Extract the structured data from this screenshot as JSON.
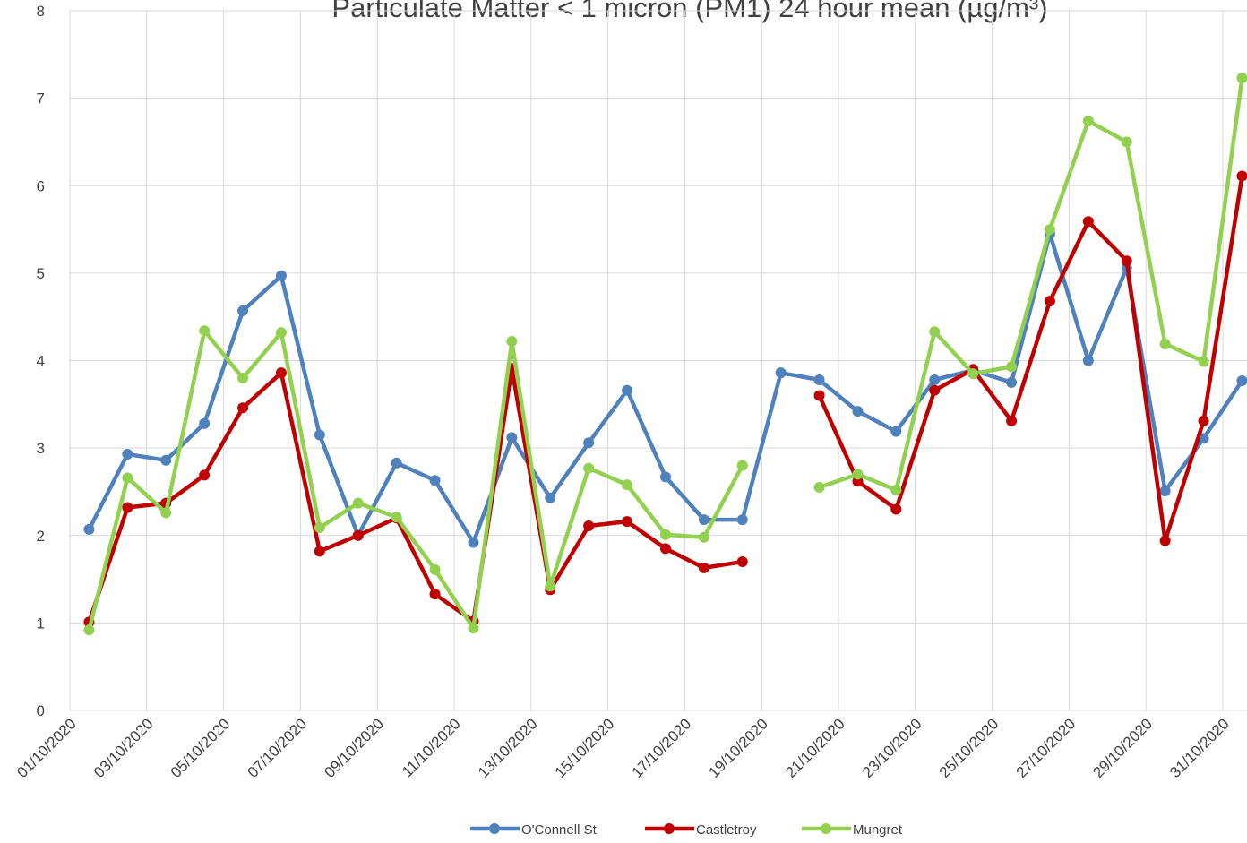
{
  "chart_data": {
    "type": "line",
    "title": "Particulate Matter < 1 micron (PM1) 24 hour mean (µg/m³)",
    "categories": [
      "01/10/2020",
      null,
      "03/10/2020",
      null,
      "05/10/2020",
      null,
      "07/10/2020",
      null,
      "09/10/2020",
      null,
      "11/10/2020",
      null,
      "13/10/2020",
      null,
      "15/10/2020",
      null,
      "17/10/2020",
      null,
      "19/10/2020",
      null,
      "21/10/2020",
      null,
      "23/10/2020",
      null,
      "25/10/2020",
      null,
      "27/10/2020",
      null,
      "29/10/2020",
      null,
      "31/10/2020"
    ],
    "series": [
      {
        "name": "O'Connell St",
        "color": "#4f81bd",
        "values": [
          2.07,
          2.93,
          2.86,
          3.28,
          4.57,
          4.97,
          3.15,
          2.0,
          2.83,
          2.63,
          1.92,
          3.12,
          2.43,
          3.06,
          3.66,
          2.67,
          2.18,
          2.18,
          3.86,
          3.78,
          3.42,
          3.19,
          3.78,
          3.89,
          3.75,
          5.45,
          4.0,
          5.06,
          2.51,
          3.11,
          3.77
        ]
      },
      {
        "name": "Castletroy",
        "color": "#c00000",
        "values": [
          1.01,
          2.32,
          2.37,
          2.69,
          3.46,
          3.86,
          1.82,
          2.0,
          2.2,
          1.33,
          1.02,
          3.91,
          1.38,
          2.11,
          2.16,
          1.85,
          1.63,
          1.7,
          null,
          3.6,
          2.62,
          2.3,
          3.66,
          3.9,
          3.31,
          4.68,
          5.59,
          5.14,
          1.94,
          3.31,
          6.11
        ]
      },
      {
        "name": "Mungret",
        "color": "#92d050",
        "values": [
          0.92,
          2.66,
          2.26,
          4.34,
          3.8,
          4.32,
          2.09,
          2.37,
          2.21,
          1.61,
          0.94,
          4.22,
          1.42,
          2.77,
          2.58,
          2.01,
          1.98,
          2.8,
          null,
          2.55,
          2.7,
          2.52,
          4.33,
          3.85,
          3.93,
          5.5,
          6.74,
          6.5,
          4.19,
          3.99,
          7.23
        ]
      }
    ],
    "ylim": [
      0,
      8
    ],
    "yticks": [
      0,
      1,
      2,
      3,
      4,
      5,
      6,
      7,
      8
    ],
    "grid": true,
    "legend": "bottom"
  }
}
